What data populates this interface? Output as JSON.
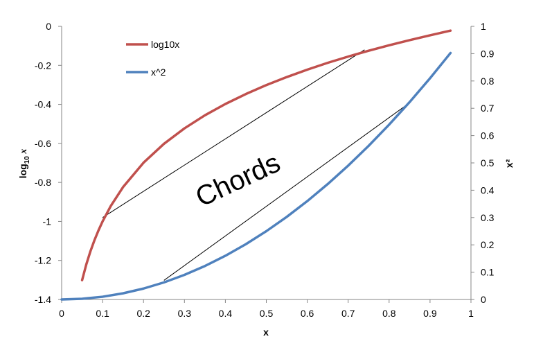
{
  "chart_data": {
    "type": "line",
    "xlabel": "x",
    "ylabel_left": "log10 x",
    "ylabel_right": "x²",
    "xlim": [
      0,
      1
    ],
    "ylim_left": [
      -1.4,
      0
    ],
    "ylim_right": [
      0,
      1
    ],
    "x_ticks": [
      "0",
      "0.1",
      "0.2",
      "0.3",
      "0.4",
      "0.5",
      "0.6",
      "0.7",
      "0.8",
      "0.9",
      "1"
    ],
    "y_left_ticks": [
      "0",
      "-0.2",
      "-0.4",
      "-0.6",
      "-0.8",
      "-1",
      "-1.2",
      "-1.4"
    ],
    "y_right_ticks": [
      "0",
      "0.1",
      "0.2",
      "0.3",
      "0.4",
      "0.5",
      "0.6",
      "0.7",
      "0.8",
      "0.9",
      "1"
    ],
    "legend_position": "top-left",
    "grid": false,
    "series": [
      {
        "name": "log10x",
        "axis": "left",
        "color": "#c0504d",
        "x": [
          0.05,
          0.06,
          0.07,
          0.08,
          0.09,
          0.1,
          0.12,
          0.15,
          0.2,
          0.25,
          0.3,
          0.35,
          0.4,
          0.45,
          0.5,
          0.55,
          0.6,
          0.65,
          0.7,
          0.75,
          0.8,
          0.85,
          0.9,
          0.95
        ],
        "y": [
          -1.301,
          -1.222,
          -1.155,
          -1.097,
          -1.046,
          -1.0,
          -0.921,
          -0.824,
          -0.699,
          -0.602,
          -0.523,
          -0.456,
          -0.398,
          -0.347,
          -0.301,
          -0.26,
          -0.222,
          -0.187,
          -0.155,
          -0.125,
          -0.097,
          -0.071,
          -0.046,
          -0.022
        ]
      },
      {
        "name": "x^2",
        "axis": "right",
        "color": "#4f81bd",
        "x": [
          0,
          0.05,
          0.1,
          0.15,
          0.2,
          0.25,
          0.3,
          0.35,
          0.4,
          0.45,
          0.5,
          0.55,
          0.6,
          0.65,
          0.7,
          0.75,
          0.8,
          0.85,
          0.9,
          0.95
        ],
        "y": [
          0,
          0.0025,
          0.01,
          0.0225,
          0.04,
          0.0625,
          0.09,
          0.1225,
          0.16,
          0.2025,
          0.25,
          0.3025,
          0.36,
          0.4225,
          0.49,
          0.5625,
          0.64,
          0.7225,
          0.81,
          0.9025
        ]
      }
    ],
    "chords": [
      {
        "axis": "left",
        "x1": 0.1,
        "y1": -0.98,
        "x2": 0.74,
        "y2": -0.12
      },
      {
        "axis": "right",
        "x1": 0.25,
        "y1": 0.07,
        "x2": 0.85,
        "y2": 0.72
      }
    ],
    "annotations": [
      {
        "text": "Chords",
        "x": 0.44,
        "y_left": -0.83,
        "rotation": -25
      }
    ]
  }
}
